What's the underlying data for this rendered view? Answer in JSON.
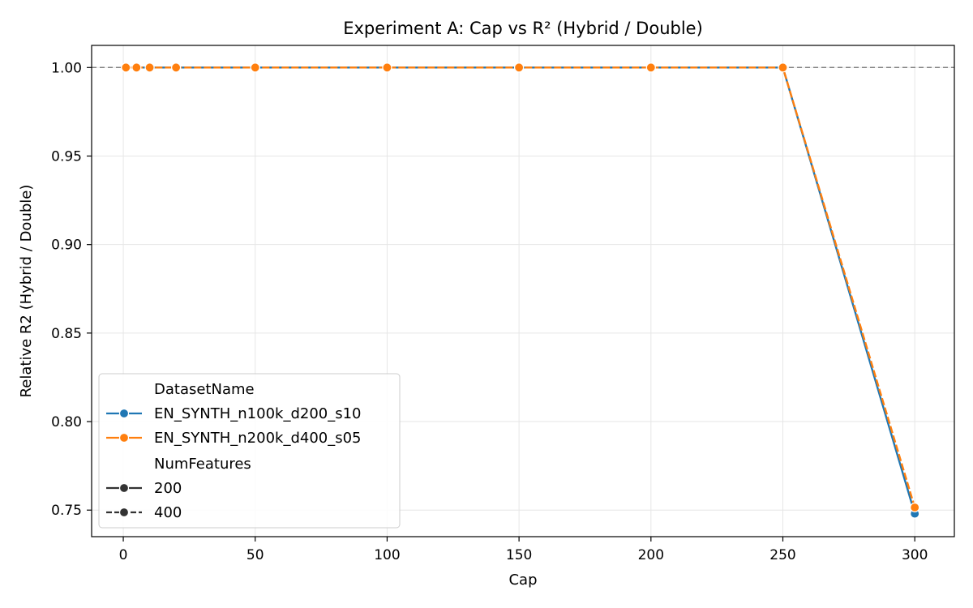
{
  "chart_data": {
    "type": "line",
    "title": "Experiment A: Cap vs R² (Hybrid / Double)",
    "xlabel": "Cap",
    "ylabel": "Relative R2 (Hybrid / Double)",
    "xlim": [
      -12,
      315
    ],
    "ylim": [
      0.735,
      1.0125
    ],
    "xticks": [
      0,
      50,
      100,
      150,
      200,
      250,
      300
    ],
    "yticks": [
      0.75,
      0.8,
      0.85,
      0.9,
      0.95,
      1.0
    ],
    "ytick_labels": [
      "0.75",
      "0.80",
      "0.85",
      "0.90",
      "0.95",
      "1.00"
    ],
    "grid": true,
    "reference_line": 1.0,
    "legend_position": "lower-left",
    "legend": {
      "hue_title": "DatasetName",
      "style_title": "NumFeatures",
      "style_entries": [
        "200",
        "400"
      ]
    },
    "series": [
      {
        "name": "EN_SYNTH_n100k_d200_s10",
        "num_features": "200",
        "color": "#1f77b4",
        "dashed": false,
        "x": [
          1,
          5,
          10,
          20,
          50,
          100,
          150,
          200,
          250,
          300
        ],
        "y": [
          1.0,
          1.0,
          1.0,
          1.0,
          1.0,
          1.0,
          1.0,
          1.0,
          1.0,
          0.748
        ]
      },
      {
        "name": "EN_SYNTH_n200k_d400_s05",
        "num_features": "400",
        "color": "#ff7f0e",
        "dashed": true,
        "x": [
          1,
          5,
          10,
          20,
          50,
          100,
          150,
          200,
          250,
          300
        ],
        "y": [
          1.0,
          1.0,
          1.0,
          1.0,
          1.0,
          1.0,
          1.0,
          1.0,
          1.0,
          0.7515
        ]
      }
    ]
  }
}
